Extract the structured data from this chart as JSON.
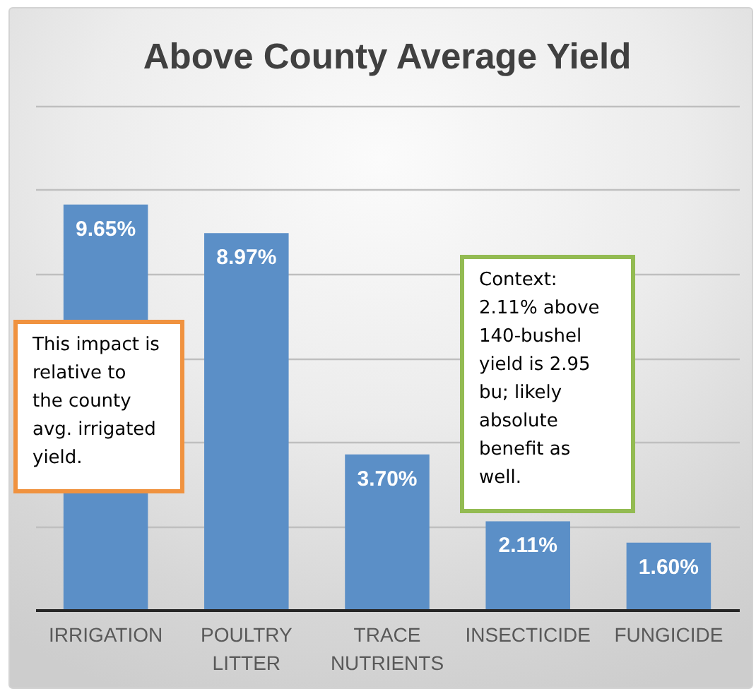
{
  "chart_data": {
    "type": "bar",
    "title": "Above County Average Yield",
    "categories": [
      "IRRIGATION",
      "POULTRY LITTER",
      "TRACE NUTRIENTS",
      "INSECTICIDE",
      "FUNGICIDE"
    ],
    "values": [
      9.65,
      8.97,
      3.7,
      2.11,
      1.6
    ],
    "value_labels": [
      "9.65%",
      "8.97%",
      "3.70%",
      "2.11%",
      "1.60%"
    ],
    "color": "#5b8fc7",
    "ylim": [
      0,
      12
    ],
    "yticks": [
      {
        "value": 0,
        "label": null
      },
      {
        "value": 2,
        "label": null
      },
      {
        "value": 4,
        "label": null
      },
      {
        "value": 6,
        "label": null
      },
      {
        "value": 8,
        "label": null
      },
      {
        "value": 10,
        "label": null
      },
      {
        "value": 12,
        "label": null
      }
    ],
    "grid": "y",
    "tick_labels": "x",
    "annotations": [
      "This impact is relative to the county avg. irrigated yield.",
      "Context: 2.11% above 140-bushel yield is 2.95 bu; likely absolute benefit as well."
    ]
  }
}
